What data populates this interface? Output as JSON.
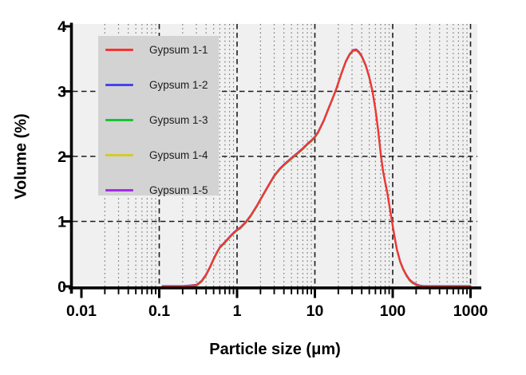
{
  "figure": {
    "x_axis": {
      "title": "Particle size (μm)",
      "scale": "log",
      "tick_labels": [
        "0.01",
        "0.1",
        "1",
        "10",
        "100",
        "1000"
      ],
      "tick_values": [
        0.01,
        0.1,
        1,
        10,
        100,
        1000
      ]
    },
    "y_axis": {
      "title": "Volume (%)",
      "scale": "linear",
      "tick_labels": [
        "0",
        "1",
        "2",
        "3",
        "4"
      ],
      "tick_values": [
        0,
        1,
        2,
        3,
        4
      ]
    },
    "colors": {
      "plot_background": "#f0f0f0",
      "legend_background": "#d3d3d3",
      "grid_major": "#1c1c1c",
      "grid_minor": "#757575",
      "axis": "#000000"
    }
  },
  "legend": {
    "position": "upper-left-inside",
    "items": [
      {
        "label": "Gypsum 1-1",
        "color": "#f83431"
      },
      {
        "label": "Gypsum 1-2",
        "color": "#4744ee"
      },
      {
        "label": "Gypsum 1-3",
        "color": "#17c338"
      },
      {
        "label": "Gypsum 1-4",
        "color": "#d3cb2b"
      },
      {
        "label": "Gypsum 1-5",
        "color": "#a62ce8"
      }
    ]
  },
  "chart_data": {
    "type": "line",
    "title": "",
    "xlabel": "Particle size (μm)",
    "ylabel": "Volume (%)",
    "x_scale": "log",
    "xlim": [
      0.0077,
      1220
    ],
    "ylim": [
      0,
      4
    ],
    "grid": "major-dashed-and-log-minor-dotted",
    "legend_position": "upper left inside plot",
    "note": "Five replicate measurements; all five curves overlap almost exactly, so one shared values array is given. Distribution is zero below ~0.3 um, has a shoulder near 0.9 (~0.87%), a second shoulder near 10 (~2.3%), peaks at ~33 um (~3.64%), and returns to zero near 200 um.",
    "x": [
      0.11,
      0.15,
      0.2,
      0.25,
      0.3,
      0.35,
      0.4,
      0.45,
      0.5,
      0.55,
      0.6,
      0.7,
      0.8,
      0.9,
      1.0,
      1.1,
      1.3,
      1.5,
      1.8,
      2.0,
      2.5,
      3.0,
      3.5,
      4.0,
      5.0,
      6.0,
      7.0,
      8.0,
      9.0,
      10,
      11,
      13,
      15,
      17,
      19,
      22,
      25,
      28,
      31,
      34,
      37,
      40,
      45,
      50,
      55,
      60,
      65,
      70,
      75,
      80,
      85,
      90,
      97,
      105,
      113,
      125,
      136,
      150,
      165,
      180,
      200,
      220,
      250,
      300,
      400,
      500,
      700,
      1000
    ],
    "values": [
      0,
      0,
      0,
      0.01,
      0.02,
      0.08,
      0.18,
      0.3,
      0.42,
      0.52,
      0.6,
      0.68,
      0.76,
      0.82,
      0.87,
      0.9,
      0.99,
      1.09,
      1.24,
      1.34,
      1.54,
      1.7,
      1.8,
      1.87,
      1.97,
      2.05,
      2.12,
      2.19,
      2.24,
      2.3,
      2.37,
      2.55,
      2.74,
      2.9,
      3.05,
      3.28,
      3.46,
      3.57,
      3.63,
      3.64,
      3.6,
      3.54,
      3.4,
      3.22,
      3.0,
      2.72,
      2.4,
      2.05,
      1.78,
      1.6,
      1.45,
      1.27,
      1.03,
      0.78,
      0.57,
      0.38,
      0.27,
      0.17,
      0.1,
      0.06,
      0.03,
      0.01,
      0,
      0,
      0,
      0,
      0,
      0
    ],
    "series": [
      {
        "name": "Gypsum 1-1",
        "color": "#f83431"
      },
      {
        "name": "Gypsum 1-2",
        "color": "#4744ee"
      },
      {
        "name": "Gypsum 1-3",
        "color": "#17c338"
      },
      {
        "name": "Gypsum 1-4",
        "color": "#d3cb2b"
      },
      {
        "name": "Gypsum 1-5",
        "color": "#a62ce8"
      }
    ]
  }
}
